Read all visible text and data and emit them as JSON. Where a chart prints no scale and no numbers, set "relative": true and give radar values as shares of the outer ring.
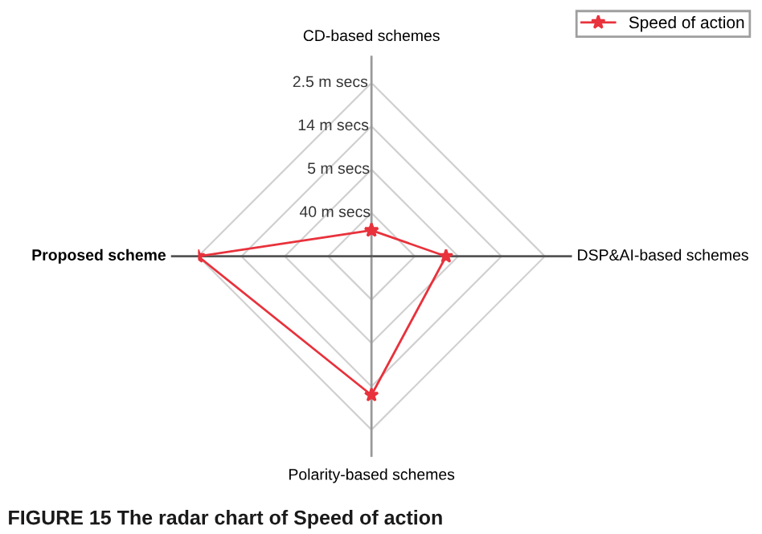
{
  "chart_data": {
    "type": "radar",
    "relative": true,
    "categories": [
      "CD-based schemes",
      "DSP&AI-based schemes",
      "Polarity-based schemes",
      "Proposed scheme"
    ],
    "series": [
      {
        "name": "Speed of action",
        "color": "#e8323c",
        "values": [
          0.15,
          0.43,
          0.8,
          1.0
        ]
      }
    ],
    "grid": true,
    "legend": "top right",
    "marker": "star",
    "line_style": "solid",
    "annotations": [
      "40 m secs",
      "5 m secs",
      "14 m secs",
      "2.5 m secs",
      "FIGURE 15 The radar chart of Speed of action"
    ]
  }
}
